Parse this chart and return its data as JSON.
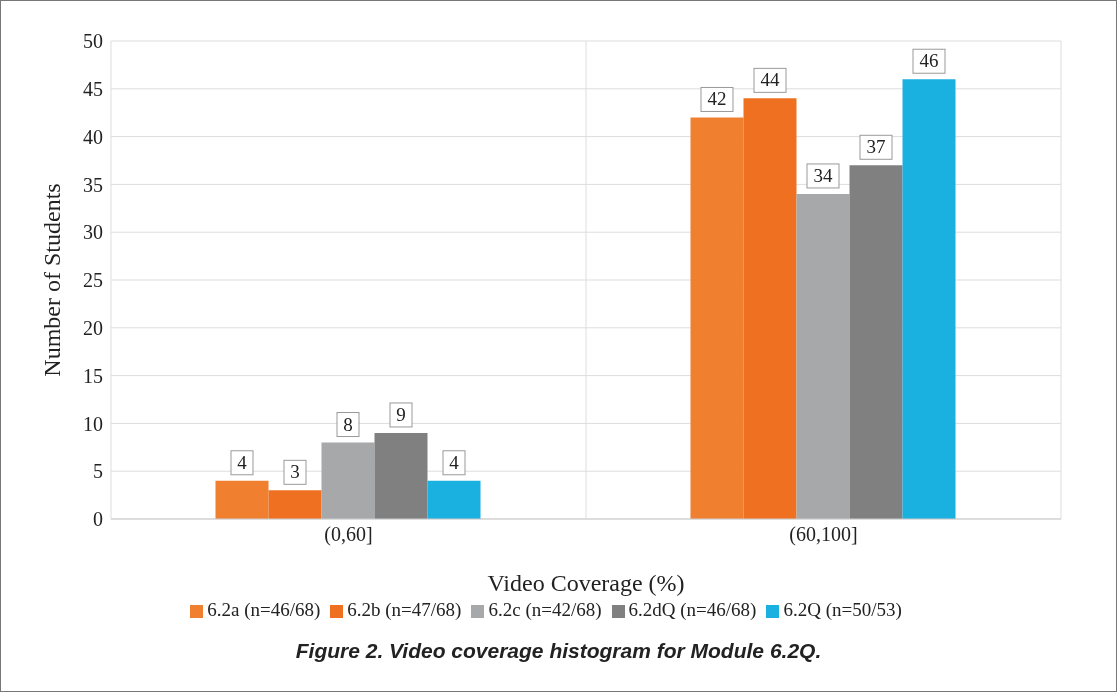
{
  "chart_data": {
    "type": "bar",
    "xlabel": "Video Coverage (%)",
    "ylabel": "Number of Students",
    "categories": [
      "(0,60]",
      "(60,100]"
    ],
    "series": [
      {
        "name": "6.2a (n=46/68)",
        "color": "#f08030",
        "values": [
          4,
          42
        ]
      },
      {
        "name": "6.2b (n=47/68)",
        "color": "#ee7020",
        "values": [
          3,
          44
        ]
      },
      {
        "name": "6.2c (n=42/68)",
        "color": "#a6a8aa",
        "values": [
          8,
          34
        ]
      },
      {
        "name": "6.2dQ (n=46/68)",
        "color": "#808080",
        "values": [
          9,
          37
        ]
      },
      {
        "name": "6.2Q (n=50/53)",
        "color": "#1ab0e0",
        "values": [
          4,
          46
        ]
      }
    ],
    "ylim": [
      0,
      50
    ],
    "yticks": [
      0,
      5,
      10,
      15,
      20,
      25,
      30,
      35,
      40,
      45,
      50
    ],
    "grid": true,
    "legend": "bottom",
    "data_labels": true,
    "annotations": [
      "Figure 2. Video coverage histogram for Module 6.2Q."
    ]
  }
}
